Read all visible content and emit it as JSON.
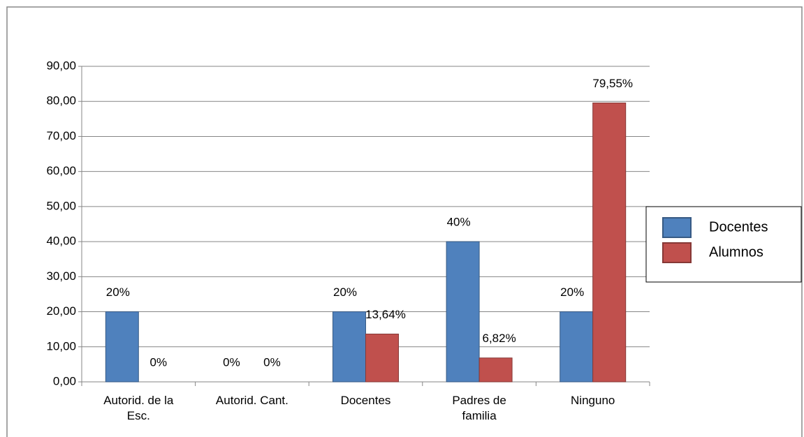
{
  "chart_data": {
    "type": "bar",
    "categories": [
      "Autorid. de la Esc.",
      "Autorid. Cant.",
      "Docentes",
      "Padres de familia",
      "Ninguno"
    ],
    "series": [
      {
        "name": "Docentes",
        "color": "#4f81bd",
        "values": [
          20,
          0,
          20,
          40,
          20
        ],
        "value_labels": [
          "20%",
          "0%",
          "20%",
          "40%",
          "20%"
        ]
      },
      {
        "name": "Alumnos",
        "color": "#c0504d",
        "values": [
          0,
          0,
          13.64,
          6.82,
          79.55
        ],
        "value_labels": [
          "0%",
          "0%",
          "13,64%",
          "6,82%",
          "79,55%"
        ]
      }
    ],
    "ylim": [
      0,
      90
    ],
    "yticks": [
      {
        "value": 0,
        "label": "0,00"
      },
      {
        "value": 10,
        "label": "10,00"
      },
      {
        "value": 20,
        "label": "20,00"
      },
      {
        "value": 30,
        "label": "30,00"
      },
      {
        "value": 40,
        "label": "40,00"
      },
      {
        "value": 50,
        "label": "50,00"
      },
      {
        "value": 60,
        "label": "60,00"
      },
      {
        "value": 70,
        "label": "70,00"
      },
      {
        "value": 80,
        "label": "80,00"
      },
      {
        "value": 90,
        "label": "90,00"
      }
    ],
    "grid": true,
    "legend": "right"
  }
}
